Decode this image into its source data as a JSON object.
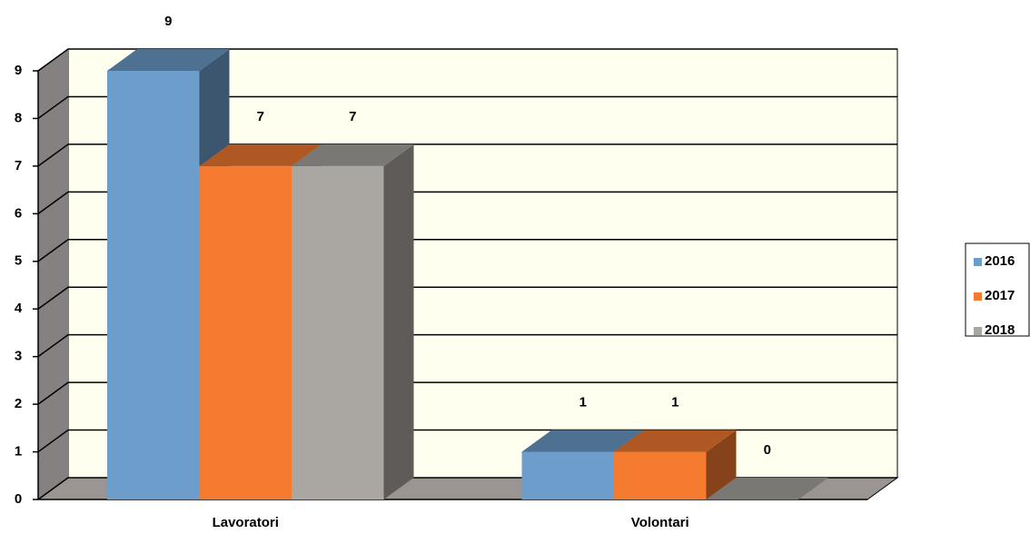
{
  "chart_data": {
    "type": "bar3d",
    "categories": [
      "Lavoratori",
      "Volontari"
    ],
    "series": [
      {
        "name": "2016",
        "color": "#6d9dcb",
        "values": [
          9,
          1
        ]
      },
      {
        "name": "2017",
        "color": "#f47a30",
        "values": [
          7,
          1
        ]
      },
      {
        "name": "2018",
        "color": "#aaa6a2",
        "values": [
          7,
          0
        ]
      }
    ],
    "ylim": [
      0,
      9
    ],
    "yticks": [
      0,
      1,
      2,
      3,
      4,
      5,
      6,
      7,
      8,
      9
    ],
    "grid": true,
    "legend": "right"
  }
}
